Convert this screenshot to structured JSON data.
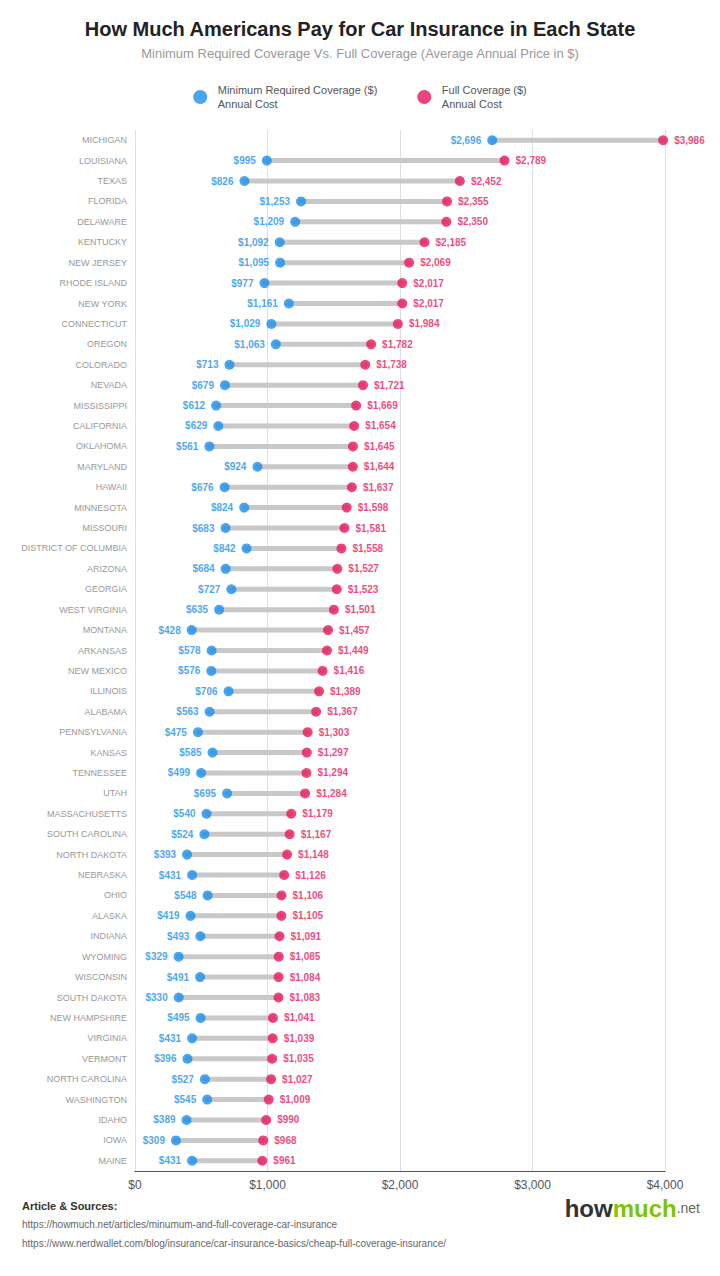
{
  "chart_data": {
    "type": "dumbbell",
    "orientation": "horizontal",
    "title": "How Much Americans Pay for Car Insurance in Each State",
    "subtitle": "Minimum Required Coverage Vs. Full Coverage (Average Annual Price in $)",
    "categories": [
      "MICHIGAN",
      "LOUISIANA",
      "TEXAS",
      "FLORIDA",
      "DELAWARE",
      "KENTUCKY",
      "NEW JERSEY",
      "RHODE ISLAND",
      "NEW YORK",
      "CONNECTICUT",
      "OREGON",
      "COLORADO",
      "NEVADA",
      "MISSISSIPPI",
      "CALIFORNIA",
      "OKLAHOMA",
      "MARYLAND",
      "HAWAII",
      "MINNESOTA",
      "MISSOURI",
      "DISTRICT OF COLUMBIA",
      "ARIZONA",
      "GEORGIA",
      "WEST VIRGINIA",
      "MONTANA",
      "ARKANSAS",
      "NEW MEXICO",
      "ILLINOIS",
      "ALABAMA",
      "PENNSYLVANIA",
      "KANSAS",
      "TENNESSEE",
      "UTAH",
      "MASSACHUSETTS",
      "SOUTH CAROLINA",
      "NORTH DAKOTA",
      "NEBRASKA",
      "OHIO",
      "ALASKA",
      "INDIANA",
      "WYOMING",
      "WISCONSIN",
      "SOUTH DAKOTA",
      "NEW HAMPSHIRE",
      "VIRGINIA",
      "VERMONT",
      "NORTH CAROLINA",
      "WASHINGTON",
      "IDAHO",
      "IOWA",
      "MAINE"
    ],
    "color": "#C8C8C8",
    "series": [
      {
        "name": "Minimum Required Coverage ($)\nAnnual Cost",
        "color": "#1B8FE8",
        "values": [
          2696,
          995,
          826,
          1253,
          1209,
          1092,
          1095,
          977,
          1161,
          1029,
          1063,
          713,
          679,
          612,
          629,
          561,
          924,
          676,
          824,
          683,
          842,
          684,
          727,
          635,
          428,
          578,
          576,
          706,
          563,
          475,
          585,
          499,
          695,
          540,
          524,
          393,
          431,
          548,
          419,
          493,
          329,
          491,
          330,
          495,
          431,
          396,
          527,
          545,
          389,
          309,
          431
        ],
        "value_labels": [
          "$2,696",
          "$995",
          "$826",
          "$1,253",
          "$1,209",
          "$1,092",
          "$1,095",
          "$977",
          "$1,161",
          "$1,029",
          "$1,063",
          "$713",
          "$679",
          "$612",
          "$629",
          "$561",
          "$924",
          "$676",
          "$824",
          "$683",
          "$842",
          "$684",
          "$727",
          "$635",
          "$428",
          "$578",
          "$576",
          "$706",
          "$563",
          "$475",
          "$585",
          "$499",
          "$695",
          "$540",
          "$524",
          "$393",
          "$431",
          "$548",
          "$419",
          "$493",
          "$329",
          "$491",
          "$330",
          "$495",
          "$431",
          "$396",
          "$527",
          "$545",
          "$389",
          "$309",
          "$431"
        ]
      },
      {
        "name": "Full Coverage ($)\nAnnual Cost",
        "color": "#E8185A",
        "values": [
          3986,
          2789,
          2452,
          2355,
          2350,
          2185,
          2069,
          2017,
          2017,
          1984,
          1782,
          1738,
          1721,
          1669,
          1654,
          1645,
          1644,
          1637,
          1598,
          1581,
          1558,
          1527,
          1523,
          1501,
          1457,
          1449,
          1416,
          1389,
          1367,
          1303,
          1297,
          1294,
          1284,
          1179,
          1167,
          1148,
          1126,
          1106,
          1105,
          1091,
          1085,
          1084,
          1083,
          1041,
          1039,
          1035,
          1027,
          1009,
          990,
          968,
          961
        ],
        "value_labels": [
          "$3,986",
          "$2,789",
          "$2,452",
          "$2,355",
          "$2,350",
          "$2,185",
          "$2,069",
          "$2,017",
          "$2,017",
          "$1,984",
          "$1,782",
          "$1,738",
          "$1,721",
          "$1,669",
          "$1,654",
          "$1,645",
          "$1,644",
          "$1,637",
          "$1,598",
          "$1,581",
          "$1,558",
          "$1,527",
          "$1,523",
          "$1,501",
          "$1,457",
          "$1,449",
          "$1,416",
          "$1,389",
          "$1,367",
          "$1,303",
          "$1,297",
          "$1,294",
          "$1,284",
          "$1,179",
          "$1,167",
          "$1,148",
          "$1,126",
          "$1,106",
          "$1,105",
          "$1,091",
          "$1,085",
          "$1,084",
          "$1,083",
          "$1,041",
          "$1,039",
          "$1,035",
          "$1,027",
          "$1,009",
          "$990",
          "$968",
          "$961"
        ]
      }
    ],
    "xlim": [
      0,
      4000
    ],
    "xticks": [
      {
        "value": 0,
        "label": "$0"
      },
      {
        "value": 1000,
        "label": "$1,000"
      },
      {
        "value": 2000,
        "label": "$2,000"
      },
      {
        "value": 3000,
        "label": "$3,000"
      },
      {
        "value": 4000,
        "label": "$4,000"
      }
    ],
    "grid": true,
    "legend": "top",
    "data_labels": true,
    "annotations": [
      "Article & Sources:",
      "https://howmuch.net/articles/minumum-and-full-coverage-car-insurance",
      "https://www.nerdwallet.com/blog/insurance/car-insurance-basics/cheap-full-coverage-insurance/"
    ],
    "logo": [
      {
        "text": "how",
        "color": "#333333"
      },
      {
        "text": "much",
        "color": "#7DC500"
      },
      {
        "text": ".net",
        "color": "#666666"
      }
    ]
  }
}
